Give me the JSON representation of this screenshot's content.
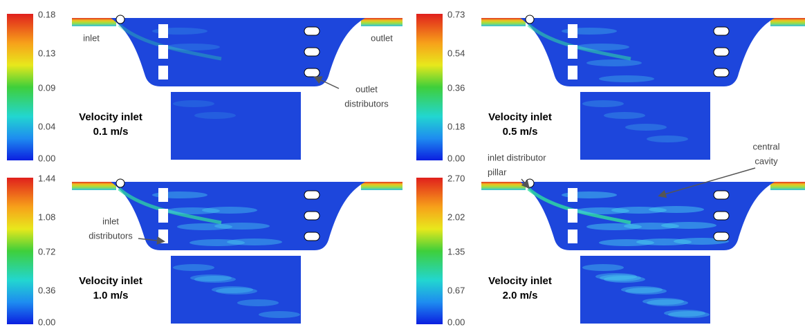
{
  "panels": [
    {
      "scale": [
        "0.18",
        "0.13",
        "0.09",
        "0.04",
        "0.00"
      ],
      "label": [
        "Velocity inlet",
        "0.1 m/s"
      ],
      "annotations": [
        {
          "lines": [
            "inlet"
          ]
        },
        {
          "lines": [
            "outlet"
          ]
        },
        {
          "lines": [
            "outlet",
            "distributors"
          ]
        }
      ]
    },
    {
      "scale": [
        "0.73",
        "0.54",
        "0.36",
        "0.18",
        "0.00"
      ],
      "label": [
        "Velocity inlet",
        "0.5 m/s"
      ],
      "annotations": []
    },
    {
      "scale": [
        "1.44",
        "1.08",
        "0.72",
        "0.36",
        "0.00"
      ],
      "label": [
        "Velocity inlet",
        "1.0 m/s"
      ],
      "annotations": [
        {
          "lines": [
            "inlet",
            "distributors"
          ]
        }
      ]
    },
    {
      "scale": [
        "2.70",
        "2.02",
        "1.35",
        "0.67",
        "0.00"
      ],
      "label": [
        "Velocity inlet",
        "2.0 m/s"
      ],
      "annotations": [
        {
          "lines": [
            "inlet distributor",
            "pillar"
          ]
        },
        {
          "lines": [
            "central",
            "cavity"
          ]
        }
      ]
    }
  ]
}
